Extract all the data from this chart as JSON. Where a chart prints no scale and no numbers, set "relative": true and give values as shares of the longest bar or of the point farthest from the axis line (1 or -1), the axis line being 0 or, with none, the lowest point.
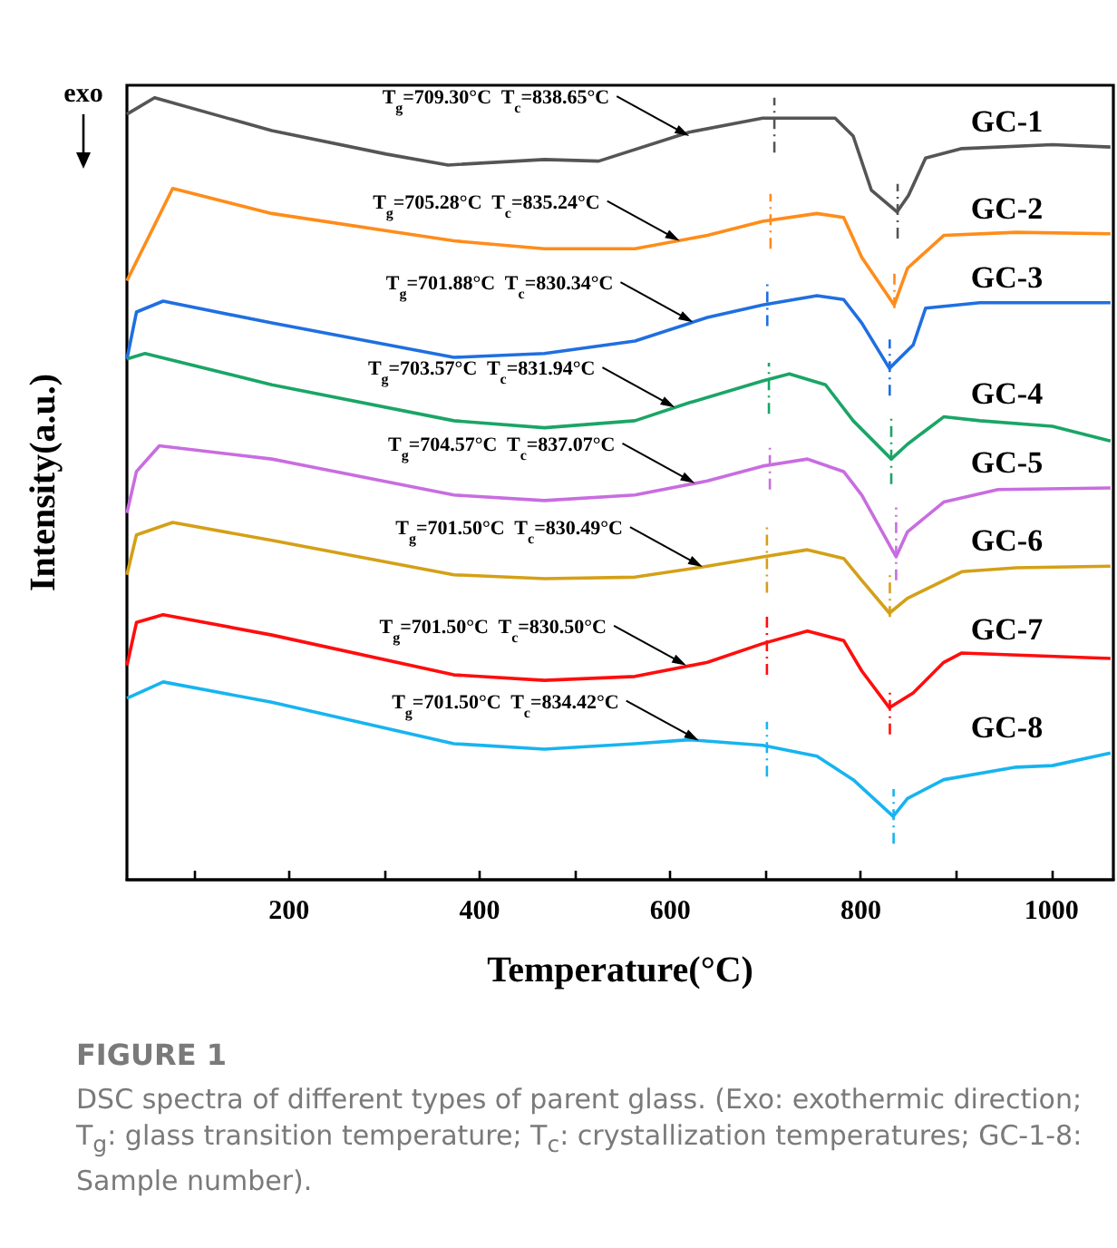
{
  "chart_data": {
    "type": "line",
    "relative": true,
    "xlabel": "Temperature(°C)",
    "ylabel": "Intensity(a.u.)",
    "xlim": [
      30,
      1065
    ],
    "xticks": [
      {
        "value": 100,
        "label": null
      },
      200,
      {
        "value": 300,
        "label": null
      },
      400,
      {
        "value": 500,
        "label": null
      },
      600,
      {
        "value": 700,
        "label": null
      },
      800,
      {
        "value": 900,
        "label": null
      },
      1000
    ],
    "x": [
      30,
      59,
      182,
      302,
      367,
      468,
      525,
      620,
      697,
      773,
      792,
      811,
      838,
      850,
      868,
      906,
      1001,
      1062
    ],
    "series": [
      {
        "name": "GC-1",
        "color": "#555555",
        "values": [
          0.979,
          1.0,
          0.958,
          0.928,
          0.914,
          0.921,
          0.919,
          0.956,
          0.974,
          0.974,
          0.951,
          0.882,
          0.854,
          0.875,
          0.923,
          0.935,
          0.94,
          0.937
        ]
      },
      {
        "name": "GC-2",
        "color": "#ff8c1a",
        "x": [
          30,
          78,
          182,
          373,
          468,
          563,
          639,
          697,
          754,
          782,
          801,
          835,
          849,
          887,
          963,
          1062
        ],
        "values": [
          0.766,
          0.884,
          0.852,
          0.817,
          0.807,
          0.807,
          0.824,
          0.842,
          0.852,
          0.847,
          0.796,
          0.735,
          0.782,
          0.824,
          0.828,
          0.826
        ]
      },
      {
        "name": "GC-3",
        "color": "#1f6fe0",
        "x": [
          30,
          40,
          68,
          182,
          373,
          468,
          563,
          639,
          697,
          754,
          782,
          801,
          830,
          855,
          868,
          925,
          1062
        ],
        "values": [
          0.666,
          0.726,
          0.74,
          0.712,
          0.668,
          0.673,
          0.689,
          0.719,
          0.735,
          0.747,
          0.742,
          0.712,
          0.654,
          0.684,
          0.731,
          0.738,
          0.738
        ]
      },
      {
        "name": "GC-4",
        "color": "#1aa566",
        "x": [
          30,
          49,
          182,
          373,
          468,
          563,
          620,
          697,
          725,
          763,
          792,
          832,
          849,
          887,
          925,
          1001,
          1062
        ],
        "values": [
          0.666,
          0.673,
          0.633,
          0.587,
          0.578,
          0.587,
          0.61,
          0.638,
          0.647,
          0.633,
          0.587,
          0.538,
          0.557,
          0.592,
          0.587,
          0.58,
          0.561
        ]
      },
      {
        "name": "GC-5",
        "color": "#c86de0",
        "x": [
          30,
          40,
          64,
          182,
          373,
          468,
          563,
          639,
          697,
          744,
          782,
          801,
          837,
          849,
          887,
          944,
          1062
        ],
        "values": [
          0.469,
          0.522,
          0.555,
          0.538,
          0.492,
          0.485,
          0.492,
          0.51,
          0.529,
          0.538,
          0.522,
          0.492,
          0.413,
          0.445,
          0.483,
          0.499,
          0.501
        ]
      },
      {
        "name": "GC-6",
        "color": "#d4a017",
        "x": [
          30,
          40,
          78,
          182,
          373,
          468,
          563,
          639,
          697,
          744,
          782,
          801,
          830,
          849,
          906,
          963,
          1062
        ],
        "values": [
          0.39,
          0.441,
          0.457,
          0.434,
          0.39,
          0.385,
          0.387,
          0.401,
          0.413,
          0.422,
          0.411,
          0.383,
          0.341,
          0.36,
          0.394,
          0.399,
          0.401
        ]
      },
      {
        "name": "GC-7",
        "color": "#ff0d0d",
        "x": [
          30,
          40,
          68,
          182,
          373,
          468,
          563,
          639,
          697,
          744,
          782,
          801,
          830,
          855,
          887,
          906,
          1062
        ],
        "values": [
          0.274,
          0.329,
          0.339,
          0.313,
          0.262,
          0.255,
          0.26,
          0.278,
          0.302,
          0.318,
          0.306,
          0.267,
          0.22,
          0.239,
          0.278,
          0.29,
          0.283
        ]
      },
      {
        "name": "GC-8",
        "color": "#17b4f0",
        "x": [
          30,
          68,
          182,
          373,
          468,
          563,
          620,
          697,
          754,
          792,
          834,
          849,
          887,
          963,
          1001,
          1062
        ],
        "values": [
          0.232,
          0.253,
          0.227,
          0.174,
          0.167,
          0.174,
          0.179,
          0.172,
          0.158,
          0.128,
          0.081,
          0.104,
          0.128,
          0.144,
          0.146,
          0.162
        ]
      },
      {
        "color": "#555555",
        "line_style": "dashed",
        "x": [
          709.3,
          709.3
        ],
        "values": [
          0.93,
          1.0
        ]
      },
      {
        "color": "#555555",
        "line_style": "dashed",
        "x": [
          838.65,
          838.65
        ],
        "values": [
          0.82,
          0.89
        ]
      },
      {
        "color": "#ff8c1a",
        "line_style": "dashed",
        "x": [
          705.28,
          705.28
        ],
        "values": [
          0.807,
          0.877
        ]
      },
      {
        "color": "#ff8c1a",
        "line_style": "dashed",
        "x": [
          835.24,
          835.24
        ],
        "values": [
          0.731,
          0.777
        ]
      },
      {
        "color": "#1f6fe0",
        "line_style": "dashed",
        "x": [
          701.88,
          701.88
        ],
        "values": [
          0.708,
          0.766
        ]
      },
      {
        "color": "#1f6fe0",
        "line_style": "dashed",
        "x": [
          830.34,
          830.34
        ],
        "values": [
          0.619,
          0.691
        ]
      },
      {
        "color": "#1aa566",
        "line_style": "dashed",
        "x": [
          703.57,
          703.57
        ],
        "values": [
          0.596,
          0.661
        ]
      },
      {
        "color": "#1aa566",
        "line_style": "dashed",
        "x": [
          831.94,
          831.94
        ],
        "values": [
          0.506,
          0.596
        ]
      },
      {
        "color": "#c86de0",
        "line_style": "dashed",
        "x": [
          704.57,
          704.57
        ],
        "values": [
          0.499,
          0.557
        ]
      },
      {
        "color": "#c86de0",
        "line_style": "dashed",
        "x": [
          837.07,
          837.07
        ],
        "values": [
          0.383,
          0.476
        ]
      },
      {
        "color": "#d4a017",
        "line_style": "dashed",
        "x": [
          701.5,
          701.5
        ],
        "values": [
          0.367,
          0.457
        ]
      },
      {
        "color": "#d4a017",
        "line_style": "dashed",
        "x": [
          830.49,
          830.49
        ],
        "values": [
          0.336,
          0.394
        ]
      },
      {
        "color": "#ff0d0d",
        "line_style": "dashed",
        "x": [
          701.5,
          701.5
        ],
        "values": [
          0.262,
          0.341
        ]
      },
      {
        "color": "#ff0d0d",
        "line_style": "dashed",
        "x": [
          830.5,
          830.5
        ],
        "values": [
          0.186,
          0.244
        ]
      },
      {
        "color": "#17b4f0",
        "line_style": "dashed",
        "x": [
          701.5,
          701.5
        ],
        "values": [
          0.132,
          0.202
        ]
      },
      {
        "color": "#17b4f0",
        "line_style": "dashed",
        "x": [
          834.42,
          834.42
        ],
        "values": [
          0.046,
          0.116
        ]
      }
    ],
    "annotations": [
      {
        "text": "T$_{g}$=709.30°C  T$_{c}$=838.65°C",
        "x": 620,
        "y": 0.951
      },
      {
        "text": "T$_{g}$=705.28°C  T$_{c}$=835.24°C",
        "x": 610,
        "y": 0.817
      },
      {
        "text": "T$_{g}$=701.88°C  T$_{c}$=830.34°C",
        "x": 624,
        "y": 0.713
      },
      {
        "text": "T$_{g}$=703.57°C  T$_{c}$=831.94°C",
        "x": 605,
        "y": 0.604
      },
      {
        "text": "T$_{g}$=704.57°C  T$_{c}$=837.07°C",
        "x": 626,
        "y": 0.507
      },
      {
        "text": "T$_{g}$=701.50°C  T$_{c}$=830.49°C",
        "x": 634,
        "y": 0.4
      },
      {
        "text": "T$_{g}$=701.50°C  T$_{c}$=830.50°C",
        "x": 617,
        "y": 0.274
      },
      {
        "text": "T$_{g}$=701.50°C  T$_{c}$=834.42°C",
        "x": 630,
        "y": 0.178
      },
      "exo",
      "FIGURE 1",
      "DSC spectra of different types of parent glass. (Exo: exothermic direction; T$_{g}$: glass transition temperature; T$_{c}$: crystallization temperatures; GC-1-8: Sample number)."
    ]
  }
}
